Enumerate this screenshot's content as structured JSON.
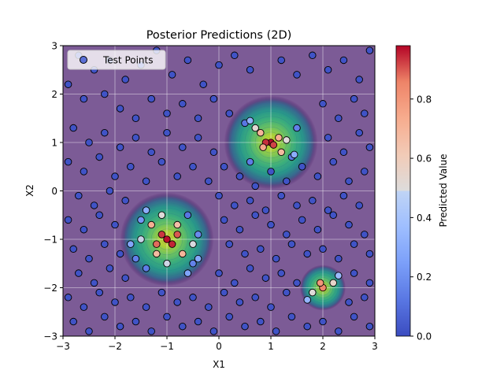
{
  "chart_data": {
    "type": "scatter",
    "title": "Posterior Predictions (2D)",
    "xlabel": "X1",
    "ylabel": "X2",
    "xlim": [
      -3,
      3
    ],
    "ylim": [
      -3,
      3
    ],
    "xticks": [
      -3,
      -2,
      -1,
      0,
      1,
      2,
      3
    ],
    "yticks": [
      -3,
      -2,
      -1,
      0,
      1,
      2,
      3
    ],
    "grid": true,
    "legend": {
      "location": "upper-left",
      "entries": [
        "Test Points"
      ]
    },
    "colorbar": {
      "label": "Predicted Value",
      "colormap": "coolwarm",
      "range": [
        0.0,
        0.98
      ],
      "ticks": [
        0.0,
        0.2,
        0.4,
        0.6,
        0.8
      ]
    },
    "background": {
      "type": "filled-contour",
      "colormap": "viridis",
      "alpha": 0.7,
      "peaks": [
        {
          "x": -1.0,
          "y": -1.0,
          "value": 0.95
        },
        {
          "x": 1.0,
          "y": 1.0,
          "value": 0.95
        },
        {
          "x": 2.0,
          "y": -2.0,
          "value": 0.8
        }
      ]
    },
    "series": [
      {
        "name": "Test Points",
        "points": [
          [
            -2.7,
            2.8
          ],
          [
            -2.4,
            2.5
          ],
          [
            -2.1,
            2.7
          ],
          [
            -1.8,
            2.3
          ],
          [
            -1.5,
            2.6
          ],
          [
            -1.2,
            2.9
          ],
          [
            -0.9,
            2.4
          ],
          [
            -0.6,
            2.7
          ],
          [
            -0.3,
            2.2
          ],
          [
            0.0,
            2.6
          ],
          [
            0.3,
            2.8
          ],
          [
            0.6,
            2.5
          ],
          [
            1.2,
            2.7
          ],
          [
            1.5,
            2.4
          ],
          [
            1.8,
            2.8
          ],
          [
            2.1,
            2.5
          ],
          [
            2.4,
            2.7
          ],
          [
            2.7,
            2.3
          ],
          [
            2.9,
            2.9
          ],
          [
            -2.9,
            2.2
          ],
          [
            -2.6,
            1.9
          ],
          [
            -2.2,
            2.0
          ],
          [
            -1.9,
            1.7
          ],
          [
            -1.6,
            1.5
          ],
          [
            -1.3,
            1.9
          ],
          [
            -1.0,
            1.6
          ],
          [
            -0.7,
            1.8
          ],
          [
            -0.4,
            1.5
          ],
          [
            -0.1,
            1.9
          ],
          [
            0.2,
            1.6
          ],
          [
            2.0,
            1.8
          ],
          [
            2.3,
            1.5
          ],
          [
            2.6,
            1.9
          ],
          [
            2.8,
            1.6
          ],
          [
            -2.8,
            1.3
          ],
          [
            -2.5,
            1.0
          ],
          [
            -2.2,
            1.2
          ],
          [
            -1.9,
            0.9
          ],
          [
            -1.6,
            1.1
          ],
          [
            -1.3,
            0.8
          ],
          [
            -1.0,
            1.2
          ],
          [
            -0.7,
            0.9
          ],
          [
            -0.4,
            1.1
          ],
          [
            -0.1,
            0.8
          ],
          [
            2.1,
            1.1
          ],
          [
            2.4,
            0.8
          ],
          [
            2.7,
            1.2
          ],
          [
            2.9,
            0.9
          ],
          [
            -2.9,
            0.6
          ],
          [
            -2.6,
            0.4
          ],
          [
            -2.3,
            0.7
          ],
          [
            -2.0,
            0.3
          ],
          [
            -1.7,
            0.5
          ],
          [
            -1.4,
            0.2
          ],
          [
            -1.1,
            0.6
          ],
          [
            -0.8,
            0.3
          ],
          [
            -0.5,
            0.5
          ],
          [
            -0.2,
            0.2
          ],
          [
            0.1,
            0.5
          ],
          [
            0.4,
            0.3
          ],
          [
            0.7,
            0.1
          ],
          [
            1.0,
            0.4
          ],
          [
            1.3,
            0.2
          ],
          [
            1.6,
            0.5
          ],
          [
            1.9,
            0.3
          ],
          [
            2.2,
            0.6
          ],
          [
            2.5,
            0.2
          ],
          [
            2.8,
            0.4
          ],
          [
            -2.7,
            -0.1
          ],
          [
            -2.4,
            -0.3
          ],
          [
            -2.1,
            0.0
          ],
          [
            -1.8,
            -0.2
          ],
          [
            0.0,
            -0.1
          ],
          [
            0.3,
            -0.3
          ],
          [
            0.6,
            -0.2
          ],
          [
            0.9,
            -0.4
          ],
          [
            1.2,
            -0.1
          ],
          [
            1.5,
            -0.3
          ],
          [
            1.8,
            -0.2
          ],
          [
            2.1,
            -0.4
          ],
          [
            2.4,
            -0.1
          ],
          [
            2.7,
            -0.3
          ],
          [
            -2.9,
            -0.6
          ],
          [
            -2.6,
            -0.8
          ],
          [
            -2.3,
            -0.5
          ],
          [
            -2.0,
            -0.7
          ],
          [
            0.1,
            -0.6
          ],
          [
            0.4,
            -0.8
          ],
          [
            0.7,
            -0.5
          ],
          [
            1.0,
            -0.7
          ],
          [
            1.3,
            -0.9
          ],
          [
            1.6,
            -0.6
          ],
          [
            1.9,
            -0.8
          ],
          [
            2.2,
            -0.5
          ],
          [
            2.5,
            -0.7
          ],
          [
            2.8,
            -0.9
          ],
          [
            -2.8,
            -1.2
          ],
          [
            -2.5,
            -1.4
          ],
          [
            -2.2,
            -1.1
          ],
          [
            -1.9,
            -1.3
          ],
          [
            0.2,
            -1.1
          ],
          [
            0.5,
            -1.3
          ],
          [
            0.8,
            -1.2
          ],
          [
            1.1,
            -1.4
          ],
          [
            1.4,
            -1.1
          ],
          [
            1.7,
            -1.3
          ],
          [
            2.0,
            -1.2
          ],
          [
            2.3,
            -1.4
          ],
          [
            2.6,
            -1.1
          ],
          [
            2.9,
            -1.3
          ],
          [
            -2.7,
            -1.7
          ],
          [
            -2.4,
            -1.9
          ],
          [
            -2.1,
            -1.6
          ],
          [
            -1.8,
            -1.8
          ],
          [
            0.0,
            -1.7
          ],
          [
            0.3,
            -1.9
          ],
          [
            0.6,
            -1.6
          ],
          [
            0.9,
            -1.8
          ],
          [
            1.2,
            -1.7
          ],
          [
            1.5,
            -1.9
          ],
          [
            2.6,
            -1.7
          ],
          [
            2.9,
            -1.9
          ],
          [
            -2.9,
            -2.2
          ],
          [
            -2.6,
            -2.4
          ],
          [
            -2.3,
            -2.1
          ],
          [
            -2.0,
            -2.3
          ],
          [
            -1.7,
            -2.2
          ],
          [
            -1.4,
            -2.4
          ],
          [
            -1.1,
            -2.1
          ],
          [
            -0.8,
            -2.3
          ],
          [
            -0.5,
            -2.2
          ],
          [
            -0.2,
            -2.4
          ],
          [
            0.1,
            -2.1
          ],
          [
            0.4,
            -2.3
          ],
          [
            0.7,
            -2.2
          ],
          [
            1.0,
            -2.4
          ],
          [
            1.3,
            -2.1
          ],
          [
            2.5,
            -2.3
          ],
          [
            2.8,
            -2.2
          ],
          [
            -2.8,
            -2.7
          ],
          [
            -2.5,
            -2.9
          ],
          [
            -2.2,
            -2.6
          ],
          [
            -1.9,
            -2.8
          ],
          [
            -1.6,
            -2.7
          ],
          [
            -1.3,
            -2.9
          ],
          [
            -1.0,
            -2.6
          ],
          [
            -0.7,
            -2.8
          ],
          [
            -0.4,
            -2.7
          ],
          [
            -0.1,
            -2.9
          ],
          [
            0.2,
            -2.6
          ],
          [
            0.5,
            -2.8
          ],
          [
            0.8,
            -2.7
          ],
          [
            1.1,
            -2.9
          ],
          [
            1.4,
            -2.6
          ],
          [
            1.7,
            -2.8
          ],
          [
            2.0,
            -2.7
          ],
          [
            2.3,
            -2.9
          ],
          [
            2.6,
            -2.6
          ],
          [
            2.9,
            -2.8
          ],
          [
            -1.6,
            -1.4
          ],
          [
            -1.5,
            -0.6
          ],
          [
            -0.4,
            -0.9
          ],
          [
            -0.5,
            -1.5
          ],
          [
            -1.4,
            -1.6
          ],
          [
            -0.6,
            -0.5
          ],
          [
            0.5,
            1.4
          ],
          [
            0.6,
            0.6
          ],
          [
            1.4,
            0.7
          ],
          [
            1.5,
            1.3
          ],
          [
            -1.0,
            -1.0
          ],
          [
            -0.9,
            -1.1
          ],
          [
            -1.1,
            -0.9
          ],
          [
            -0.8,
            -0.9
          ],
          [
            -1.2,
            -1.1
          ],
          [
            1.0,
            1.0
          ],
          [
            0.9,
            1.0
          ],
          [
            1.05,
            0.95
          ],
          [
            2.0,
            -2.0
          ],
          [
            1.95,
            -1.9
          ],
          [
            -1.3,
            -0.7
          ],
          [
            -0.7,
            -1.3
          ],
          [
            -1.2,
            -1.3
          ],
          [
            -0.8,
            -0.7
          ],
          [
            0.8,
            1.2
          ],
          [
            1.2,
            0.8
          ],
          [
            0.85,
            0.9
          ],
          [
            1.15,
            1.1
          ],
          [
            -1.1,
            -0.5
          ],
          [
            -0.5,
            -1.1
          ],
          [
            -1.5,
            -1.0
          ],
          [
            -1.0,
            -1.5
          ],
          [
            0.7,
            1.3
          ],
          [
            1.3,
            1.05
          ],
          [
            2.2,
            -1.9
          ],
          [
            1.8,
            -2.1
          ],
          [
            -1.4,
            -0.4
          ],
          [
            -0.4,
            -1.4
          ],
          [
            -1.7,
            -1.1
          ],
          [
            -0.6,
            -1.7
          ],
          [
            0.6,
            1.45
          ],
          [
            1.45,
            0.75
          ],
          [
            2.3,
            -1.75
          ],
          [
            1.7,
            -2.25
          ]
        ],
        "values": [
          0.02,
          0.02,
          0.02,
          0.02,
          0.02,
          0.02,
          0.02,
          0.02,
          0.02,
          0.02,
          0.02,
          0.02,
          0.02,
          0.02,
          0.02,
          0.02,
          0.02,
          0.02,
          0.02,
          0.02,
          0.02,
          0.02,
          0.02,
          0.02,
          0.02,
          0.02,
          0.02,
          0.02,
          0.02,
          0.02,
          0.02,
          0.02,
          0.02,
          0.02,
          0.02,
          0.02,
          0.02,
          0.02,
          0.02,
          0.02,
          0.02,
          0.02,
          0.02,
          0.02,
          0.02,
          0.02,
          0.02,
          0.02,
          0.02,
          0.02,
          0.02,
          0.02,
          0.02,
          0.02,
          0.02,
          0.02,
          0.02,
          0.02,
          0.02,
          0.02,
          0.02,
          0.02,
          0.02,
          0.02,
          0.02,
          0.02,
          0.02,
          0.02,
          0.02,
          0.02,
          0.02,
          0.02,
          0.02,
          0.02,
          0.02,
          0.02,
          0.02,
          0.02,
          0.02,
          0.02,
          0.02,
          0.02,
          0.02,
          0.02,
          0.02,
          0.02,
          0.02,
          0.02,
          0.02,
          0.02,
          0.02,
          0.02,
          0.02,
          0.02,
          0.02,
          0.02,
          0.02,
          0.02,
          0.02,
          0.02,
          0.02,
          0.02,
          0.02,
          0.02,
          0.02,
          0.02,
          0.02,
          0.02,
          0.02,
          0.02,
          0.02,
          0.02,
          0.02,
          0.02,
          0.02,
          0.02,
          0.02,
          0.02,
          0.02,
          0.02,
          0.02,
          0.02,
          0.02,
          0.02,
          0.02,
          0.02,
          0.02,
          0.02,
          0.02,
          0.02,
          0.02,
          0.02,
          0.02,
          0.02,
          0.02,
          0.02,
          0.02,
          0.02,
          0.02,
          0.02,
          0.02,
          0.02,
          0.02,
          0.02,
          0.02,
          0.02,
          0.02,
          0.02,
          0.02,
          0.02,
          0.02,
          0.02,
          0.02,
          0.02,
          0.02,
          0.02,
          0.02,
          0.02,
          0.02,
          0.15,
          0.22,
          0.18,
          0.16,
          0.14,
          0.12,
          0.12,
          0.14,
          0.13,
          0.15,
          0.97,
          0.95,
          0.93,
          0.9,
          0.88,
          0.97,
          0.94,
          0.92,
          0.85,
          0.8,
          0.72,
          0.7,
          0.68,
          0.66,
          0.7,
          0.68,
          0.75,
          0.73,
          0.5,
          0.48,
          0.45,
          0.46,
          0.52,
          0.5,
          0.55,
          0.5,
          0.3,
          0.28,
          0.27,
          0.26,
          0.32,
          0.3,
          0.35,
          0.33
        ]
      }
    ]
  }
}
